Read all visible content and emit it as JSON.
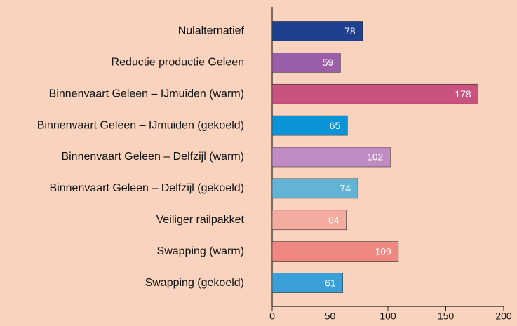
{
  "chart_data": {
    "type": "barh",
    "categories": [
      "Nulalternatief",
      "Reductie productie Geleen",
      "Binnenvaart Geleen – IJmuiden (warm)",
      "Binnenvaart Geleen – IJmuiden (gekoeld)",
      "Binnenvaart Geleen – Delfzijl (warm)",
      "Binnenvaart Geleen – Delfzijl (gekoeld)",
      "Veiliger railpakket",
      "Swapping (warm)",
      "Swapping (gekoeld)"
    ],
    "values": [
      78,
      59,
      178,
      65,
      102,
      74,
      64,
      109,
      61
    ],
    "colors": [
      "#1f3f8f",
      "#9b5ea8",
      "#c9537e",
      "#0a93d6",
      "#c08ac2",
      "#62b3d4",
      "#f3aa9f",
      "#ee8880",
      "#3a9fd6"
    ],
    "xlim": [
      0,
      200
    ],
    "xticks": [
      0,
      50,
      100,
      150,
      200
    ]
  }
}
